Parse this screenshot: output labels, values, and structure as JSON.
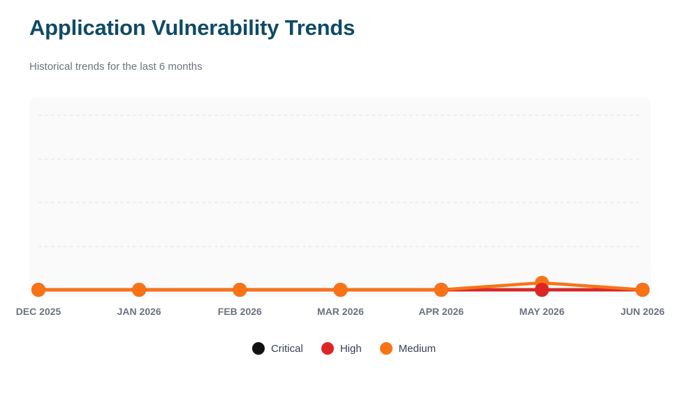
{
  "header": {
    "title": "Application Vulnerability Trends",
    "subtitle": "Historical trends for the last 6 months"
  },
  "colors": {
    "title": "#0f4a66",
    "plot_background": "#fafafa",
    "grid": "#dde1e6",
    "tick_label": "#6b7280",
    "critical": "#111111",
    "high": "#dc2626",
    "medium": "#f97316"
  },
  "chart_data": {
    "type": "line",
    "title": "Application Vulnerability Trends",
    "subtitle": "Historical trends for the last 6 months",
    "xlabel": "",
    "ylabel": "",
    "categories": [
      "DEC 2025",
      "JAN 2026",
      "FEB 2026",
      "MAR 2026",
      "APR 2026",
      "MAY 2026",
      "JUN 2026"
    ],
    "ylim": [
      0,
      10
    ],
    "grid": true,
    "y_tick_labels_shown": false,
    "legend_position": "bottom-center",
    "series": [
      {
        "name": "Critical",
        "color": "#111111",
        "values": [
          0,
          0,
          0,
          0,
          0,
          0,
          0
        ]
      },
      {
        "name": "High",
        "color": "#dc2626",
        "values": [
          0,
          0,
          0,
          0,
          0,
          0,
          0
        ]
      },
      {
        "name": "Medium",
        "color": "#f97316",
        "values": [
          0,
          0,
          0,
          0,
          0,
          1,
          0
        ]
      }
    ]
  },
  "legend": {
    "items": [
      {
        "label": "Critical",
        "color": "#111111"
      },
      {
        "label": "High",
        "color": "#dc2626"
      },
      {
        "label": "Medium",
        "color": "#f97316"
      }
    ]
  }
}
